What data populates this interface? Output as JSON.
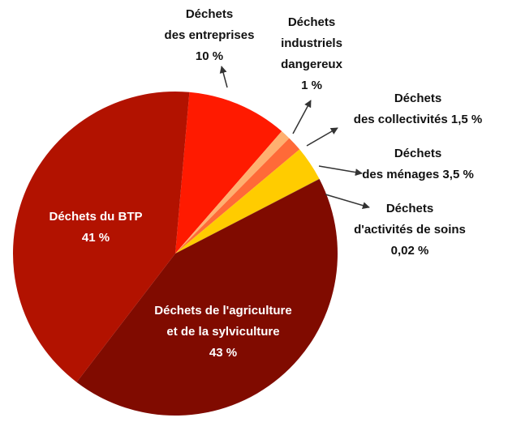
{
  "chart_data": {
    "type": "pie",
    "categories": [
      "Déchets\ndes entreprises",
      "Déchets\nindustriels\ndangereux",
      "Déchets\ndes collectivités",
      "Déchets\ndes ménages",
      "Déchets\nd'activités de soins",
      "Déchets de l'agriculture\net de la sylviculture",
      "Déchets du BTP"
    ],
    "values": [
      10,
      1,
      1.5,
      3.5,
      0.02,
      43,
      41
    ],
    "value_labels": [
      "10 %",
      "1 %",
      "1,5 %",
      "3,5 %",
      "0,02 %",
      "43 %",
      "41 %"
    ],
    "colors": [
      "#ff1a00",
      "#ffb070",
      "#ff6a38",
      "#ffcc00",
      "#2a0500",
      "#800b00",
      "#b21200"
    ]
  }
}
